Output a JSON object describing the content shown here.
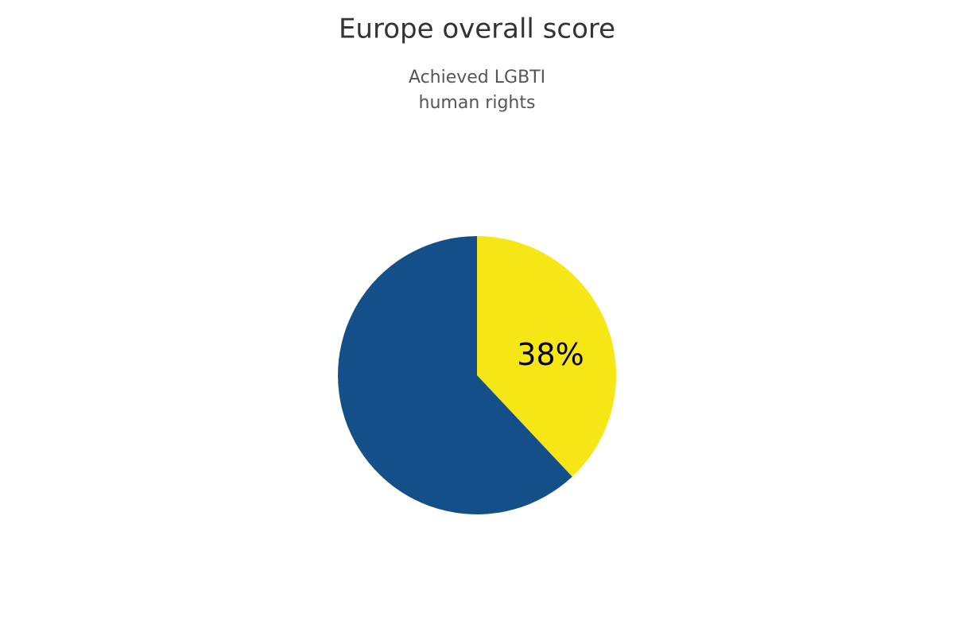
{
  "chart_data": {
    "type": "pie",
    "title": "Europe overall score",
    "subtitle": [
      "Achieved LGBTI",
      "human rights"
    ],
    "values": [
      38,
      62
    ],
    "value_labels": [
      "38%",
      null
    ],
    "colors": [
      "#f6e616",
      "#154f8a"
    ]
  }
}
